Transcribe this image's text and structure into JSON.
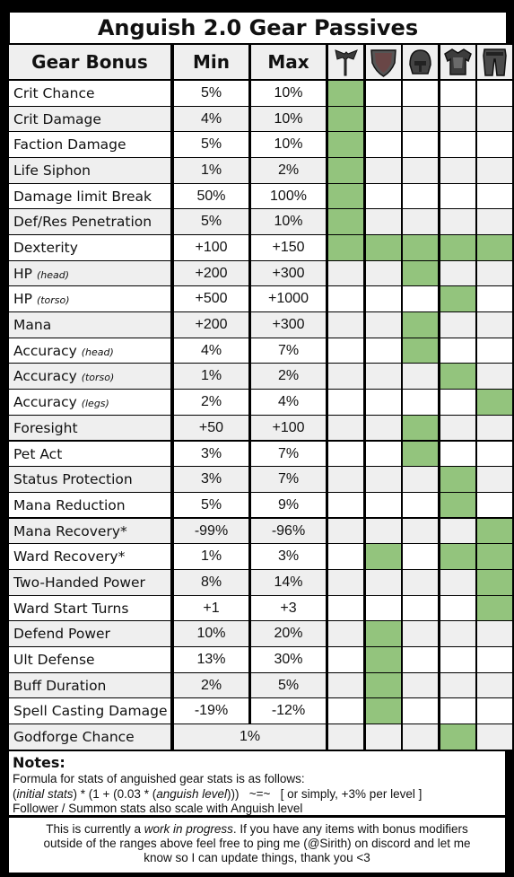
{
  "title": "Anguish 2.0 Gear Passives",
  "headers": {
    "bonus": "Gear Bonus",
    "min": "Min",
    "max": "Max"
  },
  "gear_columns": [
    {
      "icon": "axe-weapon-icon"
    },
    {
      "icon": "shield-icon"
    },
    {
      "icon": "helmet-icon"
    },
    {
      "icon": "chest-armor-icon"
    },
    {
      "icon": "leg-armor-icon"
    }
  ],
  "colors": {
    "green": "#93c47d",
    "row_even": "#efefef",
    "row_odd": "#ffffff",
    "grid": "#000000"
  },
  "rows": [
    {
      "name": "Crit Chance",
      "sub": "",
      "min": "5%",
      "max": "10%",
      "gear": [
        1,
        0,
        0,
        0,
        0
      ]
    },
    {
      "name": "Crit Damage",
      "sub": "",
      "min": "4%",
      "max": "10%",
      "gear": [
        1,
        0,
        0,
        0,
        0
      ]
    },
    {
      "name": "Faction Damage",
      "sub": "",
      "min": "5%",
      "max": "10%",
      "gear": [
        1,
        0,
        0,
        0,
        0
      ]
    },
    {
      "name": "Life Siphon",
      "sub": "",
      "min": "1%",
      "max": "2%",
      "gear": [
        1,
        0,
        0,
        0,
        0
      ]
    },
    {
      "name": "Damage limit Break",
      "sub": "",
      "min": "50%",
      "max": "100%",
      "gear": [
        1,
        0,
        0,
        0,
        0
      ]
    },
    {
      "name": "Def/Res Penetration",
      "sub": "",
      "min": "5%",
      "max": "10%",
      "gear": [
        1,
        0,
        0,
        0,
        0
      ]
    },
    {
      "name": "Dexterity",
      "sub": "",
      "min": "+100",
      "max": "+150",
      "gear": [
        1,
        1,
        1,
        1,
        1
      ]
    },
    {
      "name": "HP",
      "sub": "(head)",
      "min": "+200",
      "max": "+300",
      "gear": [
        0,
        0,
        1,
        0,
        0
      ]
    },
    {
      "name": "HP",
      "sub": "(torso)",
      "min": "+500",
      "max": "+1000",
      "gear": [
        0,
        0,
        0,
        1,
        0
      ]
    },
    {
      "name": "Mana",
      "sub": "",
      "min": "+200",
      "max": "+300",
      "gear": [
        0,
        0,
        1,
        0,
        0
      ]
    },
    {
      "name": "Accuracy",
      "sub": "(head)",
      "min": "4%",
      "max": "7%",
      "gear": [
        0,
        0,
        1,
        0,
        0
      ]
    },
    {
      "name": "Accuracy",
      "sub": "(torso)",
      "min": "1%",
      "max": "2%",
      "gear": [
        0,
        0,
        0,
        1,
        0
      ]
    },
    {
      "name": "Accuracy",
      "sub": "(legs)",
      "min": "2%",
      "max": "4%",
      "gear": [
        0,
        0,
        0,
        0,
        1
      ]
    },
    {
      "name": "Foresight",
      "sub": "",
      "min": "+50",
      "max": "+100",
      "gear": [
        0,
        0,
        1,
        0,
        0
      ]
    },
    {
      "name": "Pet Act",
      "sub": "",
      "min": "3%",
      "max": "7%",
      "gear": [
        0,
        0,
        1,
        0,
        0
      ]
    },
    {
      "name": "Status Protection",
      "sub": "",
      "min": "3%",
      "max": "7%",
      "gear": [
        0,
        0,
        0,
        1,
        0
      ]
    },
    {
      "name": "Mana Reduction",
      "sub": "",
      "min": "5%",
      "max": "9%",
      "gear": [
        0,
        0,
        0,
        1,
        0
      ]
    },
    {
      "name": "Mana Recovery*",
      "sub": "",
      "min": "-99%",
      "max": "-96%",
      "gear": [
        0,
        0,
        0,
        0,
        1
      ]
    },
    {
      "name": "Ward Recovery*",
      "sub": "",
      "min": "1%",
      "max": "3%",
      "gear": [
        0,
        1,
        0,
        1,
        1
      ]
    },
    {
      "name": "Two-Handed Power",
      "sub": "",
      "min": "8%",
      "max": "14%",
      "gear": [
        0,
        0,
        0,
        0,
        1
      ]
    },
    {
      "name": "Ward Start Turns",
      "sub": "",
      "min": "+1",
      "max": "+3",
      "gear": [
        0,
        0,
        0,
        0,
        1
      ]
    },
    {
      "name": "Defend Power",
      "sub": "",
      "min": "10%",
      "max": "20%",
      "gear": [
        0,
        1,
        0,
        0,
        0
      ]
    },
    {
      "name": "Ult Defense",
      "sub": "",
      "min": "13%",
      "max": "30%",
      "gear": [
        0,
        1,
        0,
        0,
        0
      ]
    },
    {
      "name": "Buff Duration",
      "sub": "",
      "min": "2%",
      "max": "5%",
      "gear": [
        0,
        1,
        0,
        0,
        0
      ]
    },
    {
      "name": "Spell Casting Damage",
      "sub": "",
      "min": "-19%",
      "max": "-12%",
      "gear": [
        0,
        1,
        0,
        0,
        0
      ]
    },
    {
      "name": "Godforge Chance",
      "sub": "",
      "span": "1%",
      "gear": [
        0,
        0,
        0,
        1,
        0
      ]
    }
  ],
  "notes": {
    "title": "Notes:",
    "line1": "Formula for stats of anguished gear stats is as follows:",
    "line2_parts": [
      "(",
      "initial stats",
      ") * (1 + (0.03 * (",
      "anguish level",
      ")))   ~=~   [ or simply, +3% per level ]"
    ],
    "line3": "Follower / Summon stats also scale with Anguish level"
  },
  "footer": {
    "line1_a": "This is currently a ",
    "line1_em": "work in progress",
    "line1_b": ". If you have any items with bonus modifiers",
    "line2": "outside of the ranges above feel free to ping me (@Sirith) on discord and let me",
    "line3": "know so I can update things, thank you <3"
  }
}
